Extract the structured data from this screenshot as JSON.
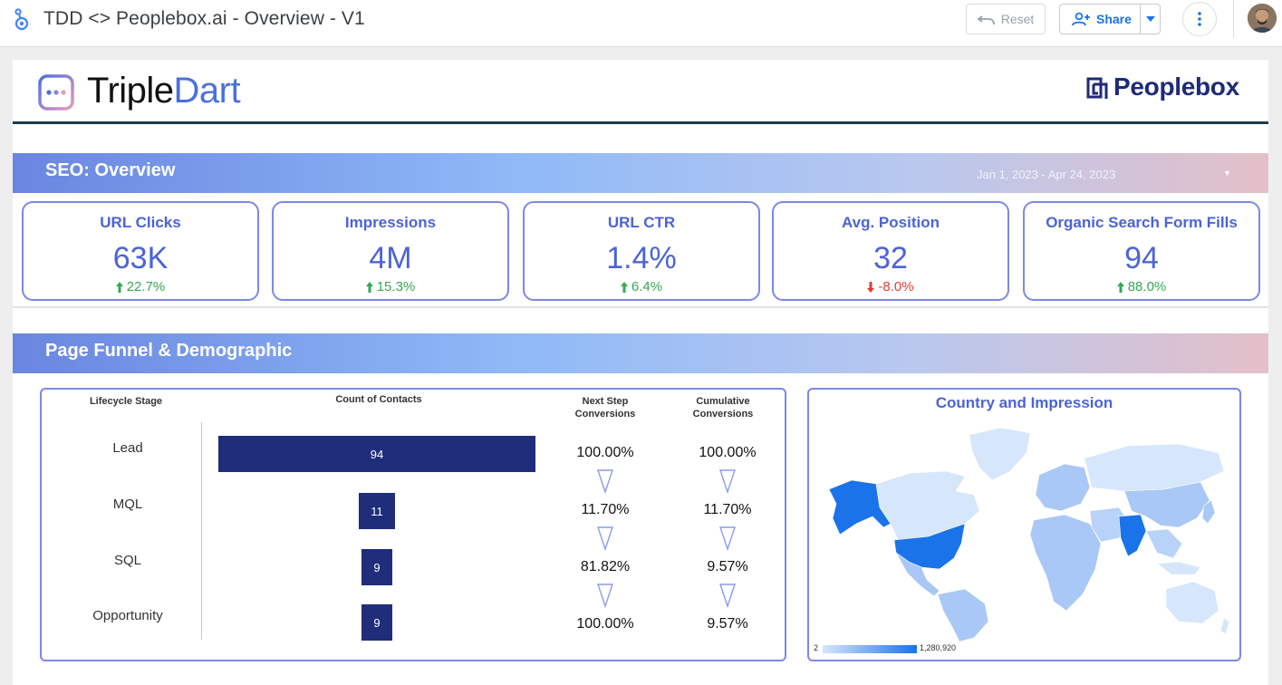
{
  "app": {
    "title": "TDD <> Peoplebox.ai - Overview - V1",
    "reset_label": "Reset",
    "share_label": "Share"
  },
  "brands": {
    "left_logo_part1": "Triple",
    "left_logo_part2": "Dart",
    "right_logo": "Peoplebox"
  },
  "seo": {
    "title": "SEO: Overview",
    "date_range": "Jan 1, 2023 - Apr 24, 2023",
    "kpis": [
      {
        "label": "URL Clicks",
        "value": "63K",
        "delta": "22.7%",
        "direction": "up"
      },
      {
        "label": "Impressions",
        "value": "4M",
        "delta": "15.3%",
        "direction": "up"
      },
      {
        "label": "URL CTR",
        "value": "1.4%",
        "delta": "6.4%",
        "direction": "up"
      },
      {
        "label": "Avg. Position",
        "value": "32",
        "delta": "-8.0%",
        "direction": "down"
      },
      {
        "label": "Organic Search Form Fills",
        "value": "94",
        "delta": "88.0%",
        "direction": "up"
      }
    ]
  },
  "funnel": {
    "title": "Page Funnel & Demographic",
    "headers": {
      "stage": "Lifecycle Stage",
      "count": "Count of Contacts",
      "next_line1": "Next Step",
      "next_line2": "Conversions",
      "cum_line1": "Cumulative",
      "cum_line2": "Conversions"
    },
    "rows": [
      {
        "stage": "Lead",
        "count": 94,
        "next": "100.00%",
        "cumulative": "100.00%"
      },
      {
        "stage": "MQL",
        "count": 11,
        "next": "11.70%",
        "cumulative": "11.70%"
      },
      {
        "stage": "SQL",
        "count": 9,
        "next": "81.82%",
        "cumulative": "9.57%"
      },
      {
        "stage": "Opportunity",
        "count": 9,
        "next": "100.00%",
        "cumulative": "9.57%"
      }
    ]
  },
  "map": {
    "title": "Country and Impression",
    "legend_min": "2",
    "legend_max": "1,280,920",
    "colors": {
      "low": "#d6e6fb",
      "mid": "#a9c8f5",
      "high": "#1a73e8"
    }
  },
  "colors": {
    "accent": "#4b63d8",
    "card_border": "#7b89e6",
    "bar": "#1f2d7b",
    "positive": "#34a853",
    "negative": "#e53935"
  }
}
